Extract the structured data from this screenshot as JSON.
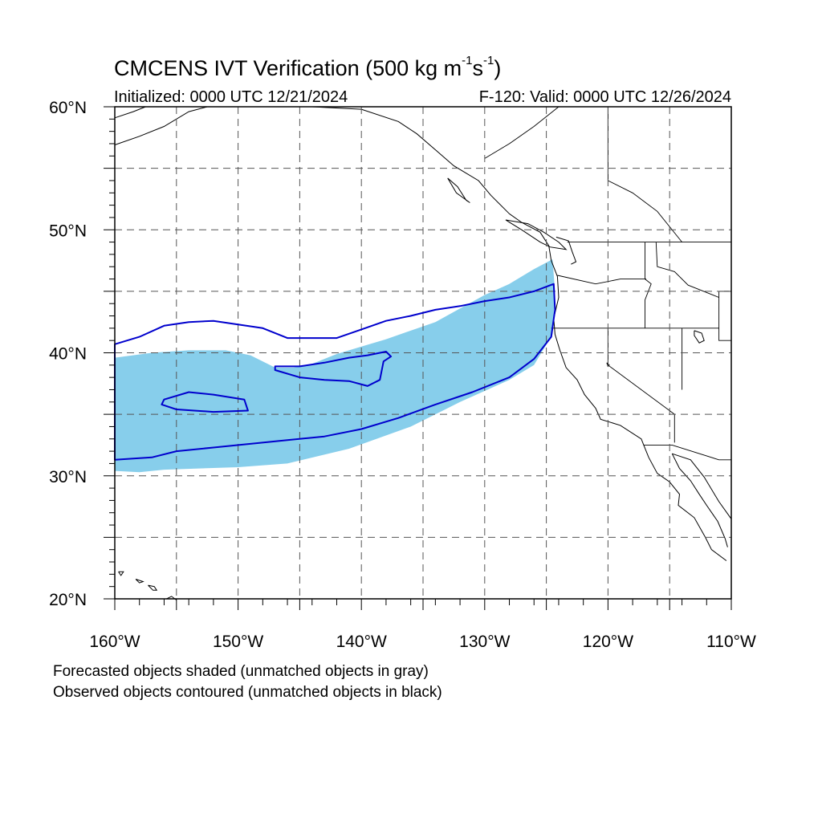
{
  "title": {
    "main": "CMCENS IVT Verification (500 kg m",
    "sup1": "-1",
    "mid": "s",
    "sup2": "-1",
    "close": ")"
  },
  "subtitle": {
    "initialized": "Initialized: 0000 UTC 12/21/2024",
    "valid": "F-120: Valid: 0000 UTC 12/26/2024"
  },
  "captions": {
    "forecast": "Forecasted objects shaded (unmatched objects in gray)",
    "observed": "Observed objects contoured (unmatched objects in black)"
  },
  "map": {
    "lon_range": [
      -160,
      -110
    ],
    "lat_range": [
      20,
      60
    ],
    "lon_ticks": [
      "160°W",
      "150°W",
      "140°W",
      "130°W",
      "120°W",
      "110°W"
    ],
    "lat_ticks": [
      "20°N",
      "30°N",
      "40°N",
      "50°N",
      "60°N"
    ],
    "colors": {
      "forecast_fill": "#87ceeb",
      "observed_contour": "#0000cd",
      "coast": "#000000",
      "grid": "#555555"
    },
    "forecast_object": [
      [
        -160,
        30.4
      ],
      [
        -158,
        30.3
      ],
      [
        -156,
        30.5
      ],
      [
        -150,
        30.7
      ],
      [
        -146,
        31.0
      ],
      [
        -141,
        32.2
      ],
      [
        -136,
        34.0
      ],
      [
        -132,
        36.0
      ],
      [
        -128,
        37.8
      ],
      [
        -126,
        39.0
      ],
      [
        -124.5,
        41.5
      ],
      [
        -124.3,
        45.0
      ],
      [
        -124.5,
        47.6
      ],
      [
        -126,
        46.8
      ],
      [
        -128,
        45.6
      ],
      [
        -130,
        44.7
      ],
      [
        -132,
        43.6
      ],
      [
        -134,
        42.5
      ],
      [
        -136,
        41.8
      ],
      [
        -138,
        41.1
      ],
      [
        -140,
        40.5
      ],
      [
        -142,
        39.9
      ],
      [
        -144,
        39.1
      ],
      [
        -145.5,
        38.8
      ],
      [
        -147,
        38.8
      ],
      [
        -149,
        39.8
      ],
      [
        -151,
        40.2
      ],
      [
        -154,
        40.2
      ],
      [
        -157,
        40.0
      ],
      [
        -160,
        39.6
      ]
    ],
    "observed_objects": [
      [
        [
          -160,
          31.3
        ],
        [
          -157,
          31.5
        ],
        [
          -155,
          32.0
        ],
        [
          -152,
          32.3
        ],
        [
          -149,
          32.6
        ],
        [
          -146,
          32.9
        ],
        [
          -143,
          33.2
        ],
        [
          -140,
          33.8
        ],
        [
          -137,
          34.7
        ],
        [
          -134,
          35.8
        ],
        [
          -131,
          36.8
        ],
        [
          -128,
          38.0
        ],
        [
          -126,
          39.5
        ],
        [
          -124.6,
          41.3
        ],
        [
          -124.3,
          43.5
        ],
        [
          -124.4,
          45.6
        ],
        [
          -126,
          45.0
        ],
        [
          -128,
          44.5
        ],
        [
          -130,
          44.2
        ],
        [
          -132,
          43.8
        ],
        [
          -134,
          43.5
        ],
        [
          -136,
          43.0
        ],
        [
          -138,
          42.6
        ],
        [
          -140,
          41.9
        ],
        [
          -142,
          41.2
        ],
        [
          -146,
          41.2
        ],
        [
          -148,
          42.0
        ],
        [
          -150,
          42.3
        ],
        [
          -152,
          42.6
        ],
        [
          -154,
          42.5
        ],
        [
          -156,
          42.2
        ],
        [
          -158,
          41.3
        ],
        [
          -160,
          40.7
        ]
      ],
      [
        [
          -147,
          38.6
        ],
        [
          -145,
          38.0
        ],
        [
          -143,
          37.8
        ],
        [
          -141,
          37.7
        ],
        [
          -139.5,
          37.3
        ],
        [
          -138.5,
          37.8
        ],
        [
          -138.2,
          39.3
        ],
        [
          -137.6,
          39.7
        ],
        [
          -138.0,
          40.1
        ],
        [
          -139.5,
          39.8
        ],
        [
          -141,
          39.6
        ],
        [
          -143,
          39.2
        ],
        [
          -145,
          38.9
        ],
        [
          -147,
          38.9
        ]
      ],
      [
        [
          -156,
          36.2
        ],
        [
          -154,
          36.8
        ],
        [
          -152,
          36.6
        ],
        [
          -149.5,
          36.2
        ],
        [
          -149.2,
          35.3
        ],
        [
          -152,
          35.2
        ],
        [
          -155,
          35.4
        ],
        [
          -156.2,
          35.8
        ]
      ]
    ],
    "coastlines": [
      [
        [
          -160,
          56.9
        ],
        [
          -158,
          57.6
        ],
        [
          -156,
          58.4
        ],
        [
          -154,
          59.6
        ],
        [
          -152.5,
          60
        ]
      ],
      [
        [
          -160,
          59.1
        ],
        [
          -158.5,
          59.6
        ],
        [
          -157.5,
          60
        ]
      ],
      [
        [
          -144,
          60
        ],
        [
          -140,
          59.8
        ],
        [
          -137,
          58.8
        ],
        [
          -135.5,
          57.8
        ],
        [
          -134,
          56.5
        ],
        [
          -132.5,
          55.2
        ],
        [
          -130.5,
          54.0
        ],
        [
          -129.5,
          52.8
        ],
        [
          -128,
          51.3
        ],
        [
          -127,
          50.6
        ],
        [
          -125.5,
          49.8
        ],
        [
          -124.8,
          48.7
        ],
        [
          -124.6,
          47.5
        ],
        [
          -124.1,
          46.2
        ],
        [
          -124.0,
          44.5
        ],
        [
          -124.4,
          42.8
        ],
        [
          -124.3,
          41.5
        ],
        [
          -123.9,
          40.2
        ],
        [
          -123.4,
          38.8
        ],
        [
          -122.5,
          37.8
        ],
        [
          -121.9,
          36.6
        ],
        [
          -121.0,
          35.5
        ],
        [
          -120.6,
          34.6
        ],
        [
          -119.0,
          34.1
        ],
        [
          -117.3,
          33.0
        ],
        [
          -117.1,
          32.5
        ],
        [
          -116.7,
          31.5
        ],
        [
          -116.0,
          30.2
        ],
        [
          -115.0,
          29.5
        ],
        [
          -114.2,
          28.5
        ],
        [
          -114.3,
          27.6
        ],
        [
          -113.0,
          26.6
        ],
        [
          -112.1,
          25.0
        ],
        [
          -111.6,
          24.0
        ],
        [
          -110.4,
          23.1
        ]
      ],
      [
        [
          -114.8,
          31.8
        ],
        [
          -114.2,
          30.6
        ],
        [
          -113.3,
          29.6
        ],
        [
          -112.6,
          28.5
        ],
        [
          -112.0,
          27.6
        ],
        [
          -111.1,
          26.3
        ],
        [
          -110.5,
          24.9
        ],
        [
          -110.3,
          24.2
        ]
      ],
      [
        [
          -114.8,
          31.8
        ],
        [
          -113.3,
          31.3
        ],
        [
          -112.2,
          29.9
        ],
        [
          -111.0,
          27.9
        ],
        [
          -110,
          26.5
        ]
      ],
      [
        [
          -133.0,
          54.2
        ],
        [
          -132.2,
          53.5
        ],
        [
          -131.5,
          52.4
        ],
        [
          -131.2,
          52.2
        ],
        [
          -132.3,
          53.0
        ],
        [
          -133.0,
          54.2
        ]
      ],
      [
        [
          -128.3,
          50.8
        ],
        [
          -126.5,
          50.5
        ],
        [
          -125.2,
          49.8
        ],
        [
          -124.0,
          49.0
        ],
        [
          -123.4,
          48.4
        ],
        [
          -124.7,
          48.6
        ],
        [
          -125.5,
          49.0
        ],
        [
          -127.0,
          50.0
        ],
        [
          -128.3,
          50.8
        ]
      ],
      [
        [
          -124.2,
          49.4
        ],
        [
          -123.2,
          49.1
        ],
        [
          -122.9,
          48.2
        ],
        [
          -122.6,
          47.4
        ],
        [
          -123.0,
          47.2
        ]
      ],
      [
        [
          -155.8,
          20.0
        ],
        [
          -155.4,
          20.2
        ],
        [
          -155.0,
          19.9
        ]
      ],
      [
        [
          -157.3,
          21.1
        ],
        [
          -156.8,
          21.0
        ],
        [
          -156.6,
          20.7
        ],
        [
          -156.9,
          20.7
        ],
        [
          -157.3,
          21.1
        ]
      ],
      [
        [
          -159.7,
          22.2
        ],
        [
          -159.3,
          22.2
        ],
        [
          -159.5,
          21.9
        ],
        [
          -159.7,
          22.2
        ]
      ],
      [
        [
          -158.3,
          21.6
        ],
        [
          -157.7,
          21.4
        ],
        [
          -158.0,
          21.3
        ],
        [
          -158.3,
          21.6
        ]
      ]
    ],
    "borders": [
      [
        [
          -124.6,
          42.0
        ],
        [
          -120.0,
          42.0
        ],
        [
          -111.0,
          42.0
        ]
      ],
      [
        [
          -120.0,
          42.0
        ],
        [
          -120.0,
          39.0
        ],
        [
          -114.6,
          35.0
        ],
        [
          -114.6,
          32.7
        ]
      ],
      [
        [
          -117.1,
          32.5
        ],
        [
          -114.8,
          32.5
        ],
        [
          -111.0,
          31.3
        ],
        [
          -110.0,
          31.3
        ]
      ],
      [
        [
          -123.3,
          49.0
        ],
        [
          -110.0,
          49.0
        ]
      ],
      [
        [
          -117.0,
          49.0
        ],
        [
          -117.0,
          46.0
        ],
        [
          -116.5,
          45.6
        ],
        [
          -117.0,
          44.3
        ],
        [
          -117.0,
          42.0
        ]
      ],
      [
        [
          -124.1,
          46.3
        ],
        [
          -121.0,
          45.6
        ],
        [
          -119.0,
          46.0
        ],
        [
          -116.9,
          46.0
        ]
      ],
      [
        [
          -111.0,
          45.0
        ],
        [
          -110.0,
          45.0
        ]
      ],
      [
        [
          -111.0,
          45.0
        ],
        [
          -111.0,
          41.0
        ],
        [
          -110.0,
          41.0
        ]
      ],
      [
        [
          -114.0,
          42.0
        ],
        [
          -114.0,
          37.0
        ]
      ],
      [
        [
          -116.1,
          49.0
        ],
        [
          -116.0,
          47.0
        ],
        [
          -114.6,
          46.6
        ],
        [
          -113.5,
          45.5
        ],
        [
          -111.0,
          44.5
        ]
      ],
      [
        [
          -130.0,
          55.8
        ],
        [
          -128.0,
          57.0
        ],
        [
          -126.0,
          58.4
        ],
        [
          -124.0,
          60.0
        ]
      ],
      [
        [
          -120.0,
          60.0
        ],
        [
          -120.0,
          54.0
        ],
        [
          -118.0,
          53.0
        ],
        [
          -116.0,
          51.5
        ],
        [
          -114.0,
          49.0
        ]
      ]
    ],
    "lakes": [
      [
        [
          -113.0,
          41.8
        ],
        [
          -112.4,
          41.6
        ],
        [
          -112.2,
          41.0
        ],
        [
          -112.6,
          40.8
        ],
        [
          -113.0,
          41.4
        ],
        [
          -113.0,
          41.8
        ]
      ],
      [
        [
          -120.1,
          39.2
        ],
        [
          -119.9,
          39.0
        ],
        [
          -120.0,
          38.9
        ],
        [
          -120.1,
          39.2
        ]
      ]
    ]
  }
}
